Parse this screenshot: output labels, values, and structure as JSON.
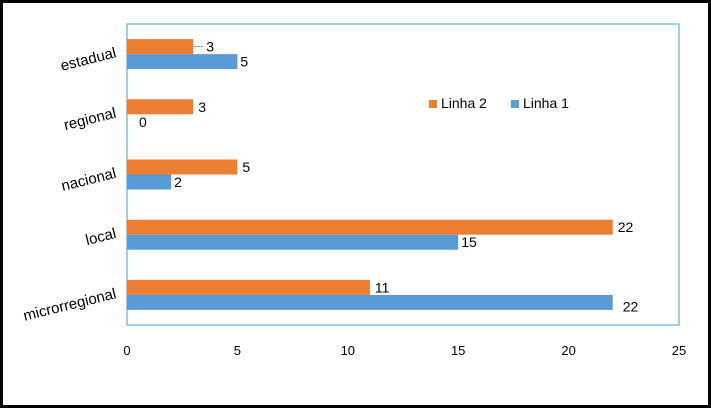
{
  "chart_data": {
    "type": "bar",
    "orientation": "horizontal",
    "categories": [
      "microrregional",
      "local",
      "nacional",
      "regional",
      "estadual"
    ],
    "series": [
      {
        "name": "Linha 1",
        "values": [
          22,
          15,
          2,
          0,
          5
        ],
        "color": "#5B9BD5"
      },
      {
        "name": "Linha 2",
        "values": [
          11,
          22,
          5,
          3,
          3
        ],
        "color": "#ED7D31"
      }
    ],
    "xlim": [
      0,
      25
    ],
    "xticks": [
      0,
      5,
      10,
      15,
      20,
      25
    ],
    "legend": "right-center",
    "plot_border_color": "#6BB4DA",
    "grid": false
  }
}
